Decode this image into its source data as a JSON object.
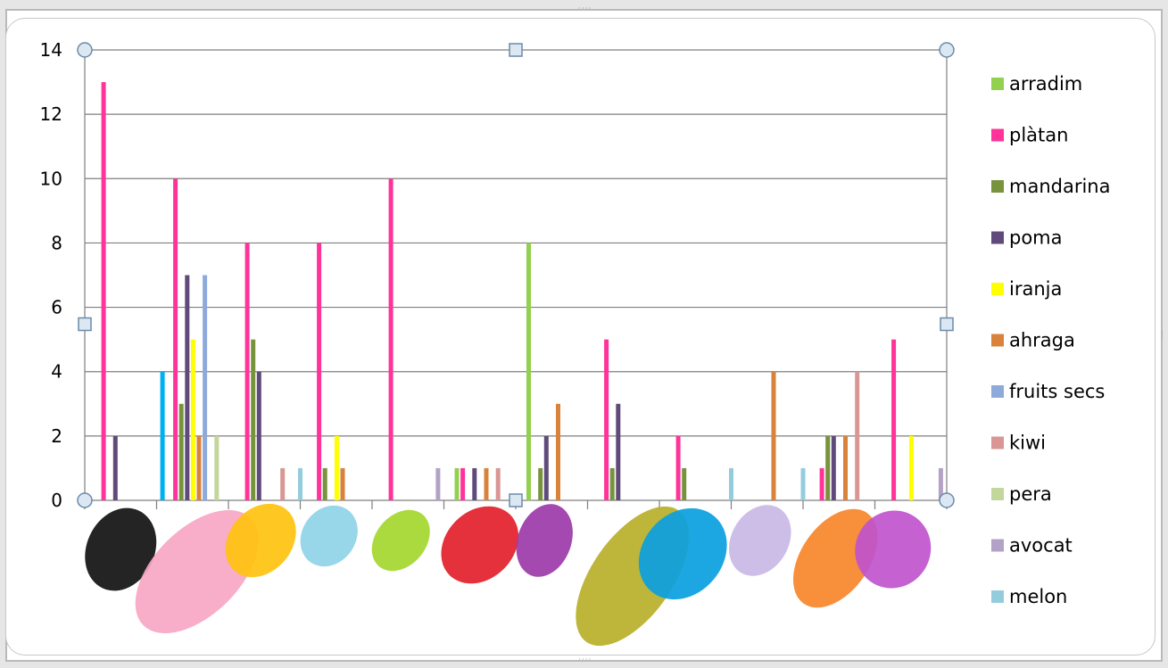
{
  "chart_data": {
    "type": "bar",
    "ylim": [
      0,
      14
    ],
    "yticks": [
      "0",
      "2",
      "4",
      "6",
      "8",
      "10",
      "12",
      "14"
    ],
    "grid": true,
    "legend_position": "right",
    "categories": [
      "black",
      "pink",
      "yellow",
      "light blue",
      "lime",
      "red",
      "purple",
      "olive",
      "blue",
      "lavender",
      "orange",
      "magenta"
    ],
    "category_colors": [
      "#111111",
      "#f7a6c4",
      "#ffc20e",
      "#8fd3e8",
      "#a4d72e",
      "#e2202a",
      "#9b3aa8",
      "#b8b02a",
      "#0aa0e0",
      "#c9b8e6",
      "#f7862a",
      "#c054cc"
    ],
    "series": [
      {
        "name": "arradim",
        "color": "#92d050",
        "values": [
          0,
          0,
          0,
          0,
          0,
          1,
          8,
          0,
          0,
          0,
          0,
          0
        ]
      },
      {
        "name": "plàtan",
        "color": "#ff3399",
        "values": [
          13,
          10,
          8,
          8,
          10,
          1,
          0,
          5,
          2,
          0,
          1,
          5
        ]
      },
      {
        "name": "mandarina",
        "color": "#77933c",
        "values": [
          0,
          3,
          5,
          1,
          0,
          0,
          1,
          1,
          1,
          0,
          2,
          0
        ]
      },
      {
        "name": "poma",
        "color": "#604a7b",
        "values": [
          2,
          7,
          4,
          0,
          0,
          1,
          2,
          3,
          0,
          0,
          2,
          0
        ]
      },
      {
        "name": "iranja",
        "color": "#ffff00",
        "values": [
          0,
          5,
          0,
          2,
          0,
          0,
          0,
          0,
          0,
          0,
          0,
          2
        ]
      },
      {
        "name": "ahraga",
        "color": "#d9823b",
        "values": [
          0,
          2,
          0,
          1,
          0,
          1,
          3,
          0,
          0,
          4,
          2,
          0
        ]
      },
      {
        "name": "fruits secs",
        "color": "#8eaadb",
        "values": [
          0,
          7,
          0,
          0,
          0,
          0,
          0,
          0,
          0,
          0,
          0,
          0
        ]
      },
      {
        "name": "kiwi",
        "color": "#d99694",
        "values": [
          0,
          0,
          1,
          0,
          0,
          1,
          0,
          0,
          0,
          0,
          4,
          0
        ]
      },
      {
        "name": "pera",
        "color": "#c3d69b",
        "values": [
          0,
          2,
          0,
          0,
          0,
          0,
          0,
          0,
          0,
          0,
          0,
          0
        ]
      },
      {
        "name": "avocat",
        "color": "#b3a2c7",
        "values": [
          0,
          0,
          0,
          0,
          1,
          0,
          0,
          0,
          0,
          0,
          0,
          1
        ]
      },
      {
        "name": "melon",
        "color": "#93cddd",
        "values": [
          0,
          0,
          1,
          0,
          0,
          0,
          0,
          0,
          1,
          1,
          0,
          0
        ]
      },
      {
        "name": "",
        "color": "#00b0f0",
        "values": [
          4,
          0,
          0,
          0,
          0,
          0,
          0,
          0,
          0,
          0,
          0,
          0
        ]
      }
    ]
  }
}
